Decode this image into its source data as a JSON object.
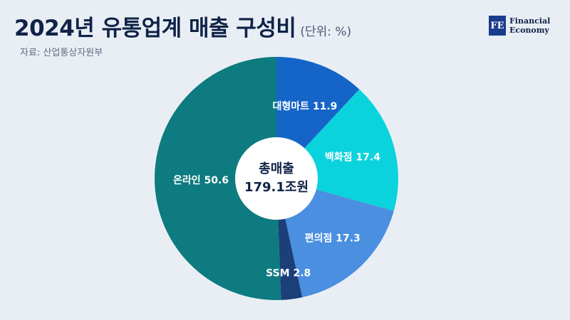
{
  "header": {
    "title": "2024년 유통업계 매출 구성비",
    "unit": "(단위: %)",
    "source": "자료: 산업통상자원부"
  },
  "logo": {
    "mark": "FE",
    "line1": "Financial",
    "line2": "Economy"
  },
  "chart_data": {
    "type": "pie",
    "donut": true,
    "center_label": [
      "총매출",
      "179.1조원"
    ],
    "start_angle_deg": 0,
    "direction": "clockwise",
    "slices": [
      {
        "label": "대형마트",
        "value": 11.9,
        "color": "#1565C8",
        "text": "대형마트 11.9"
      },
      {
        "label": "백화점",
        "value": 17.4,
        "color": "#0BD3DD",
        "text": "백화점 17.4"
      },
      {
        "label": "편의점",
        "value": 17.3,
        "color": "#4A8FE0",
        "text": "편의점 17.3"
      },
      {
        "label": "SSM",
        "value": 2.8,
        "color": "#1C3F7A",
        "text": "SSM 2.8"
      },
      {
        "label": "온라인",
        "value": 50.6,
        "color": "#0D7B7F",
        "text": "온라인 50.6"
      }
    ]
  }
}
